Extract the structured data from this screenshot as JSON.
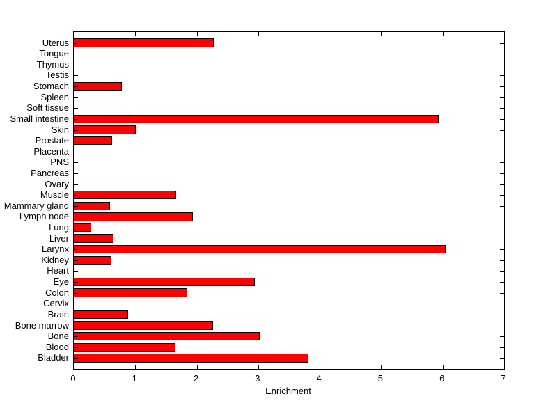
{
  "figure": {
    "background_color": "#FFFFFF",
    "plot_background_color": "#FFFFFF",
    "axis_color": "#000000"
  },
  "chart_data": {
    "type": "bar",
    "orientation": "horizontal",
    "title": "",
    "xlabel": "Enrichment",
    "ylabel": "",
    "xlim": [
      0,
      7
    ],
    "xticks": [
      "0",
      "1",
      "2",
      "3",
      "4",
      "5",
      "6",
      "7"
    ],
    "grid": false,
    "legend": null,
    "bar_color": "#FF0000",
    "bar_edge_color": "#000000",
    "category_order": "top-to-bottom",
    "categories": [
      "Uterus",
      "Tongue",
      "Thymus",
      "Testis",
      "Stomach",
      "Spleen",
      "Soft tissue",
      "Small intestine",
      "Skin",
      "Prostate",
      "Placenta",
      "PNS",
      "Pancreas",
      "Ovary",
      "Muscle",
      "Mammary gland",
      "Lymph node",
      "Lung",
      "Liver",
      "Larynx",
      "Kidney",
      "Heart",
      "Eye",
      "Colon",
      "Cervix",
      "Brain",
      "Bone marrow",
      "Bone",
      "Blood",
      "Bladder"
    ],
    "values": [
      2.28,
      0,
      0,
      0,
      0.78,
      0,
      0,
      5.93,
      1.01,
      0.62,
      0,
      0,
      0,
      0,
      1.66,
      0.59,
      1.94,
      0.28,
      0.64,
      6.05,
      0.61,
      0,
      2.95,
      1.85,
      0,
      0.88,
      2.27,
      3.02,
      1.65,
      3.82
    ]
  }
}
